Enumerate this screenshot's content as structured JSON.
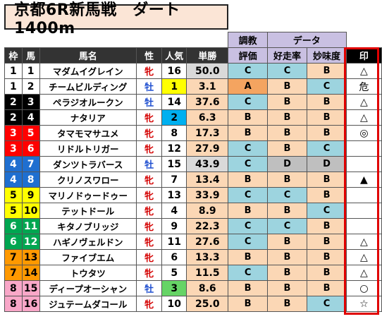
{
  "title": "京都6R新馬戦　ダート1400m",
  "header": {
    "rating_top": "調教",
    "rating_bottom": "評価",
    "data_group": "データ",
    "waku": "枠",
    "uma": "馬",
    "name": "馬名",
    "sex": "性",
    "popularity": "人気",
    "odds": "単勝",
    "win_rate": "好走率",
    "taste": "妙味度",
    "mark": "印"
  },
  "rows": [
    {
      "waku": "1",
      "uma": "1",
      "name": "マダムイグレイン",
      "sex": "牝",
      "pop": "16",
      "odds": "50.0",
      "rating": "C",
      "win_rate": "C",
      "taste": "B",
      "mark": "△"
    },
    {
      "waku": "1",
      "uma": "2",
      "name": "チームビルディング",
      "sex": "牡",
      "pop": "1",
      "odds": "3.1",
      "rating": "A",
      "win_rate": "B",
      "taste": "C",
      "mark": "危"
    },
    {
      "waku": "2",
      "uma": "3",
      "name": "ペラジオルークン",
      "sex": "牡",
      "pop": "14",
      "odds": "37.6",
      "rating": "C",
      "win_rate": "B",
      "taste": "B",
      "mark": "△"
    },
    {
      "waku": "2",
      "uma": "4",
      "name": "ナタリア",
      "sex": "牝",
      "pop": "2",
      "odds": "6.3",
      "rating": "B",
      "win_rate": "B",
      "taste": "B",
      "mark": "△"
    },
    {
      "waku": "3",
      "uma": "5",
      "name": "タマモマサユメ",
      "sex": "牝",
      "pop": "8",
      "odds": "17.3",
      "rating": "B",
      "win_rate": "B",
      "taste": "B",
      "mark": "◎"
    },
    {
      "waku": "3",
      "uma": "6",
      "name": "リドルトリガー",
      "sex": "牝",
      "pop": "12",
      "odds": "27.9",
      "rating": "C",
      "win_rate": "B",
      "taste": "C",
      "mark": ""
    },
    {
      "waku": "4",
      "uma": "7",
      "name": "ダンツトラバース",
      "sex": "牡",
      "pop": "15",
      "odds": "43.9",
      "rating": "C",
      "win_rate": "D",
      "taste": "D",
      "mark": ""
    },
    {
      "waku": "4",
      "uma": "8",
      "name": "クリノスワロー",
      "sex": "牝",
      "pop": "7",
      "odds": "13.4",
      "rating": "B",
      "win_rate": "B",
      "taste": "B",
      "mark": "▲"
    },
    {
      "waku": "5",
      "uma": "9",
      "name": "マリノドゥードゥー",
      "sex": "牝",
      "pop": "13",
      "odds": "33.9",
      "rating": "C",
      "win_rate": "C",
      "taste": "B",
      "mark": ""
    },
    {
      "waku": "5",
      "uma": "10",
      "name": "テットドール",
      "sex": "牝",
      "pop": "4",
      "odds": "8.9",
      "rating": "B",
      "win_rate": "B",
      "taste": "C",
      "mark": ""
    },
    {
      "waku": "6",
      "uma": "11",
      "name": "キタノブリッジ",
      "sex": "牝",
      "pop": "9",
      "odds": "22.3",
      "rating": "C",
      "win_rate": "C",
      "taste": "B",
      "mark": ""
    },
    {
      "waku": "6",
      "uma": "12",
      "name": "ハギノヴェルドン",
      "sex": "牝",
      "pop": "11",
      "odds": "27.6",
      "rating": "C",
      "win_rate": "B",
      "taste": "B",
      "mark": "△"
    },
    {
      "waku": "7",
      "uma": "13",
      "name": "ファイブエム",
      "sex": "牝",
      "pop": "6",
      "odds": "13.3",
      "rating": "B",
      "win_rate": "B",
      "taste": "B",
      "mark": "△"
    },
    {
      "waku": "7",
      "uma": "14",
      "name": "トウタツ",
      "sex": "牝",
      "pop": "5",
      "odds": "11.5",
      "rating": "C",
      "win_rate": "B",
      "taste": "B",
      "mark": "△"
    },
    {
      "waku": "8",
      "uma": "15",
      "name": "ディープオーシャン",
      "sex": "牡",
      "pop": "3",
      "odds": "8.6",
      "rating": "B",
      "win_rate": "B",
      "taste": "B",
      "mark": "○"
    },
    {
      "waku": "8",
      "uma": "16",
      "name": "ジュテームダコール",
      "sex": "牝",
      "pop": "10",
      "odds": "25.0",
      "rating": "B",
      "win_rate": "B",
      "taste": "C",
      "mark": "☆"
    }
  ],
  "colors": {
    "waku_1": "#ffffff",
    "waku_2": "#000000",
    "waku_3": "#ff0000",
    "waku_4": "#1f6fd0",
    "waku_5": "#ffff00",
    "waku_6": "#00a651",
    "waku_7": "#ff9900",
    "waku_8": "#f9a7c8",
    "male": "#1f4fd0",
    "female": "#d40000",
    "highlight_box": "#e00000"
  }
}
